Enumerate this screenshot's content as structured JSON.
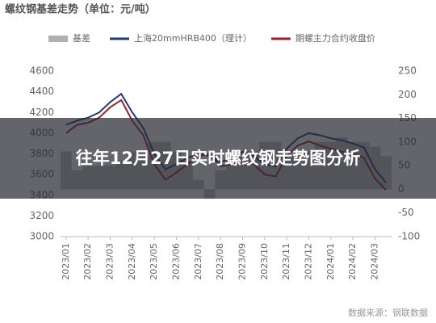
{
  "chart_data": {
    "type": "line",
    "title": "螺纹钢基差走势（单位：元/吨）",
    "source": "数据来源：钢联数据",
    "categories": [
      "2023/01",
      null,
      "2023/02",
      null,
      "2023/03",
      null,
      "2023/04",
      null,
      "2023/05",
      null,
      "2023/06",
      null,
      "2023/07",
      null,
      "2023/08",
      null,
      "2023/09",
      null,
      "2023/10",
      null,
      "2023/11",
      null,
      "2023/12",
      null,
      "2024/01",
      null,
      "2024/02",
      null,
      "2024/03",
      null
    ],
    "series": [
      {
        "name": "基差",
        "color": "#b0b0b0",
        "axis": "y2",
        "values": [
          80,
          40,
          50,
          50,
          50,
          60,
          80,
          70,
          100,
          100,
          80,
          60,
          20,
          -20,
          40,
          60,
          80,
          80,
          100,
          100,
          70,
          70,
          80,
          100,
          100,
          110,
          100,
          100,
          90,
          70
        ]
      },
      {
        "name": "上海20mmHRB400（理计）",
        "color": "#1f3a7a",
        "values": [
          4080,
          4120,
          4150,
          4200,
          4300,
          4380,
          4200,
          4050,
          3800,
          3650,
          3700,
          3760,
          3800,
          3780,
          3720,
          3760,
          3820,
          3780,
          3700,
          3680,
          3850,
          3950,
          4000,
          3980,
          3950,
          3930,
          3900,
          3860,
          3650,
          3520
        ]
      },
      {
        "name": "期螺主力合约收盘价",
        "color": "#9e1f2a",
        "values": [
          4000,
          4080,
          4100,
          4150,
          4250,
          4320,
          4120,
          3980,
          3700,
          3550,
          3620,
          3700,
          3780,
          3800,
          3680,
          3700,
          3740,
          3700,
          3600,
          3580,
          3780,
          3880,
          3920,
          3880,
          3850,
          3820,
          3800,
          3760,
          3560,
          3450
        ]
      }
    ],
    "ylim": [
      3000,
      4600
    ],
    "yticks": [
      3000,
      3200,
      3400,
      3600,
      3800,
      4000,
      4200,
      4400,
      4600
    ],
    "y2lim": [
      -100,
      250
    ],
    "y2ticks": [
      -100,
      -50,
      0,
      50,
      100,
      150,
      200,
      250
    ]
  },
  "banner": {
    "title": "往年12月27日实时螺纹钢走势图分析"
  }
}
